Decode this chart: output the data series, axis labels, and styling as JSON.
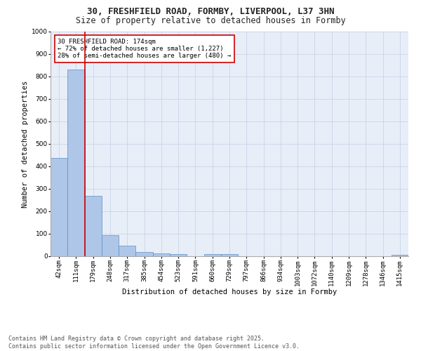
{
  "title_line1": "30, FRESHFIELD ROAD, FORMBY, LIVERPOOL, L37 3HN",
  "title_line2": "Size of property relative to detached houses in Formby",
  "xlabel": "Distribution of detached houses by size in Formby",
  "ylabel": "Number of detached properties",
  "categories": [
    "42sqm",
    "111sqm",
    "179sqm",
    "248sqm",
    "317sqm",
    "385sqm",
    "454sqm",
    "523sqm",
    "591sqm",
    "660sqm",
    "729sqm",
    "797sqm",
    "866sqm",
    "934sqm",
    "1003sqm",
    "1072sqm",
    "1140sqm",
    "1209sqm",
    "1278sqm",
    "1346sqm",
    "1415sqm"
  ],
  "values": [
    437,
    830,
    270,
    95,
    48,
    20,
    13,
    9,
    0,
    8,
    8,
    0,
    0,
    0,
    0,
    0,
    0,
    0,
    0,
    0,
    7
  ],
  "bar_color": "#aec6e8",
  "bar_edge_color": "#5a90c8",
  "vline_color": "#cc0000",
  "annotation_text": "30 FRESHFIELD ROAD: 174sqm\n← 72% of detached houses are smaller (1,227)\n28% of semi-detached houses are larger (480) →",
  "annotation_box_color": "#ffffff",
  "annotation_box_edge": "#cc0000",
  "ylim": [
    0,
    1000
  ],
  "yticks": [
    0,
    100,
    200,
    300,
    400,
    500,
    600,
    700,
    800,
    900,
    1000
  ],
  "grid_color": "#c8d4e8",
  "bg_color": "#e8eef8",
  "footer_line1": "Contains HM Land Registry data © Crown copyright and database right 2025.",
  "footer_line2": "Contains public sector information licensed under the Open Government Licence v3.0.",
  "title_fontsize": 9,
  "subtitle_fontsize": 8.5,
  "tick_fontsize": 6.5,
  "xlabel_fontsize": 7.5,
  "ylabel_fontsize": 7.5,
  "annotation_fontsize": 6.5,
  "footer_fontsize": 6
}
